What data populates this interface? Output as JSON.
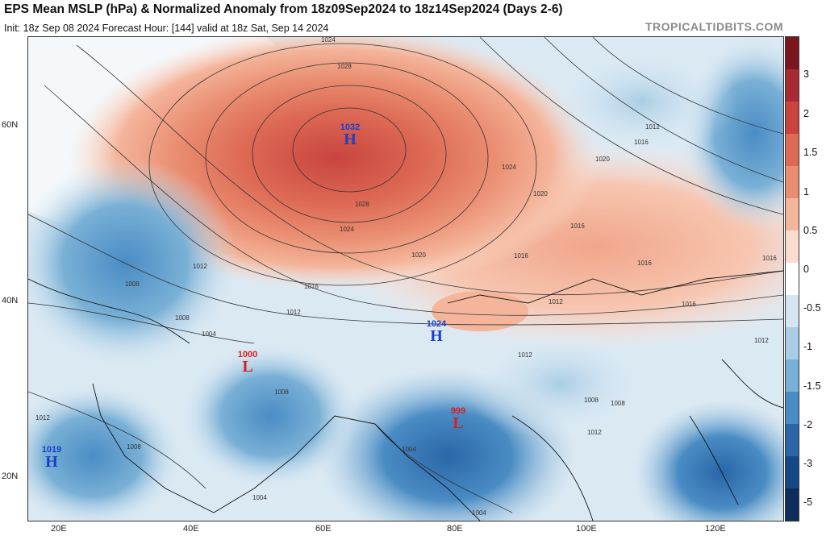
{
  "header": {
    "title": "EPS Mean MSLP (hPa) & Normalized Anomaly from 18z09Sep2024 to 18z14Sep2024 (Days 2-6)",
    "subtitle": "Init: 18z Sep 08 2024   Forecast Hour: [144]   valid at 18z Sat, Sep 14 2024",
    "brand": "TROPICALTIDBITS.COM"
  },
  "axes": {
    "lat_labels": [
      "60N",
      "40N",
      "20N"
    ],
    "lon_labels": [
      "20E",
      "40E",
      "60E",
      "80E",
      "100E",
      "120E"
    ]
  },
  "colorbar": {
    "labels": [
      "3",
      "2",
      "1.5",
      "1",
      "0.5",
      "0",
      "-0.5",
      "-1",
      "-1.5",
      "-2",
      "-3",
      "-5"
    ],
    "colors": [
      "#7b1620",
      "#a82a32",
      "#c9443f",
      "#dd6a55",
      "#ea8e72",
      "#f4b59b",
      "#fbddcf",
      "#ffffff",
      "#d4e6f1",
      "#a9cde4",
      "#79b0d6",
      "#4a8cc4",
      "#2a66a8",
      "#174886",
      "#0f2e5c"
    ]
  },
  "systems": [
    {
      "type": "H",
      "value": "1032",
      "color": "#1a3fc9"
    },
    {
      "type": "H",
      "value": "1024",
      "color": "#1a3fc9"
    },
    {
      "type": "H",
      "value": "1019",
      "color": "#1a3fc9"
    },
    {
      "type": "L",
      "value": "1000",
      "color": "#d42020"
    },
    {
      "type": "L",
      "value": "999",
      "color": "#d42020"
    }
  ],
  "isobar_labels": [
    "1024",
    "1028",
    "1028",
    "1024",
    "1020",
    "1024",
    "1016",
    "1012",
    "1016",
    "1020",
    "1020",
    "1016",
    "1016",
    "1016",
    "1012",
    "1008",
    "1008",
    "1004",
    "1012",
    "1016",
    "1012",
    "1008",
    "1004",
    "1008",
    "1004",
    "1004",
    "1008",
    "1012",
    "1012",
    "1012",
    "1008",
    "1016",
    "1012"
  ]
}
